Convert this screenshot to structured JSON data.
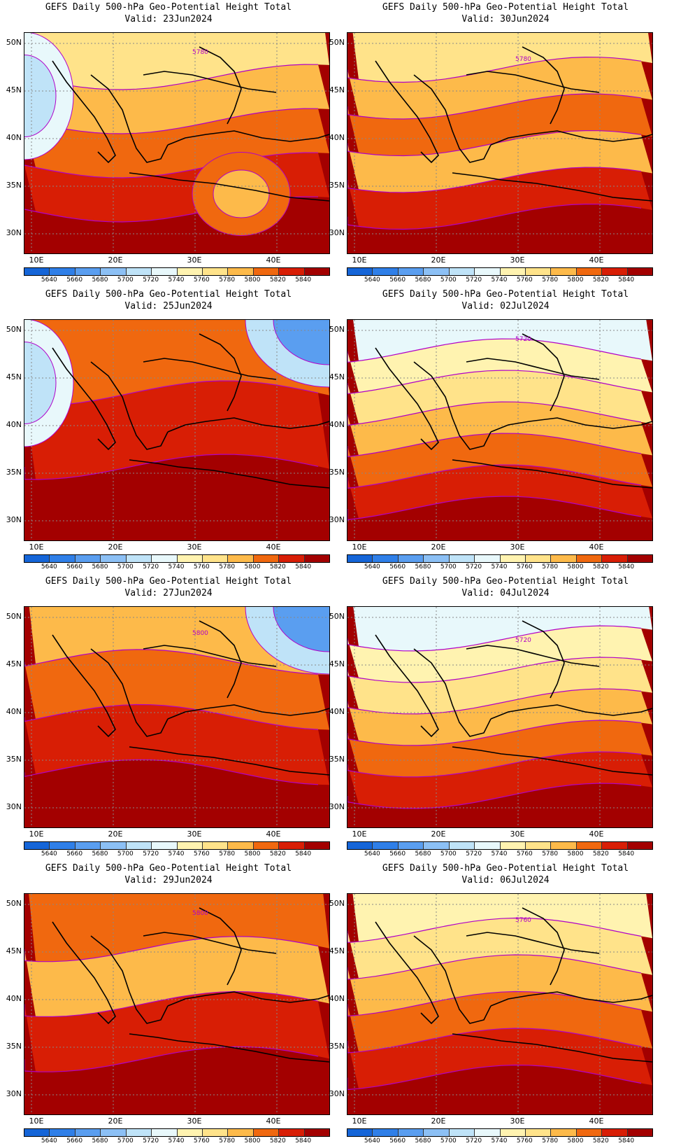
{
  "title_line1": "GEFS Daily 500-hPa Geo-Potential Height Total",
  "panels": [
    {
      "valid": "Valid: 23Jun2024",
      "pattern": "ridge_low_west",
      "contour_label": "5780"
    },
    {
      "valid": "Valid: 30Jun2024",
      "pattern": "zonal_mid",
      "contour_label": "5780"
    },
    {
      "valid": "Valid: 25Jun2024",
      "pattern": "ridge_strong",
      "contour_label": ""
    },
    {
      "valid": "Valid: 02Jul2024",
      "pattern": "zonal_cool",
      "contour_label": "5720"
    },
    {
      "valid": "Valid: 27Jun2024",
      "pattern": "ridge_east_trough",
      "contour_label": "5800"
    },
    {
      "valid": "Valid: 04Jul2024",
      "pattern": "zonal_cool",
      "contour_label": "5720"
    },
    {
      "valid": "Valid: 29Jun2024",
      "pattern": "ridge_west",
      "contour_label": "5800"
    },
    {
      "valid": "Valid: 06Jul2024",
      "pattern": "zonal_warm",
      "contour_label": "5760"
    }
  ],
  "lat_labels": [
    "50N",
    "45N",
    "40N",
    "35N",
    "30N"
  ],
  "lon_labels": [
    "10E",
    "20E",
    "30E",
    "40E"
  ],
  "colorbar": {
    "labels": [
      "5640",
      "5660",
      "5680",
      "5700",
      "5720",
      "5740",
      "5760",
      "5780",
      "5800",
      "5820",
      "5840"
    ],
    "colors": [
      "#1565d8",
      "#2f7fe8",
      "#5a9ef0",
      "#8cc0f5",
      "#bfe3f8",
      "#e8f8fb",
      "#fff3b0",
      "#ffe38a",
      "#fdba4a",
      "#f0680f",
      "#d81e05",
      "#a30000"
    ]
  }
}
